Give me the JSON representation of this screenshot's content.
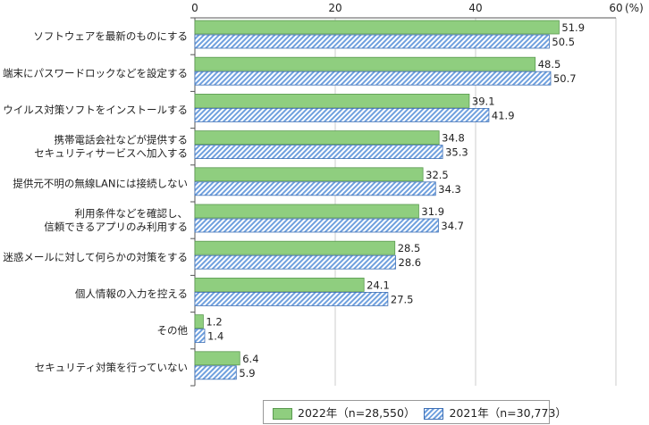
{
  "chart_data": {
    "type": "bar",
    "orientation": "horizontal",
    "xlabel": "(%)",
    "xlim": [
      0,
      60
    ],
    "xticks": [
      0,
      20,
      40,
      60
    ],
    "categories": [
      [
        "ソフトウェアを最新のものにする"
      ],
      [
        "端末にパスワードロックなどを設定する"
      ],
      [
        "ウイルス対策ソフトをインストールする"
      ],
      [
        "携帯電話会社などが提供する",
        "セキュリティサービスへ加入する"
      ],
      [
        "提供元不明の無線LANには接続しない"
      ],
      [
        "利用条件などを確認し、",
        "信頼できるアプリのみ利用する"
      ],
      [
        "迷惑メールに対して何らかの対策をする"
      ],
      [
        "個人情報の入力を控える"
      ],
      [
        "その他"
      ],
      [
        "セキュリティ対策を行っていない"
      ]
    ],
    "series": [
      {
        "name": "2022年（n=28,550）",
        "color": "#8fce7f",
        "values": [
          51.9,
          48.5,
          39.1,
          34.8,
          32.5,
          31.9,
          28.5,
          24.1,
          1.2,
          6.4
        ]
      },
      {
        "name": "2021年（n=30,773）",
        "color": "#6fa0de",
        "pattern": "hatched",
        "values": [
          50.5,
          50.7,
          41.9,
          35.3,
          34.3,
          34.7,
          28.6,
          27.5,
          1.4,
          5.9
        ]
      }
    ],
    "grid": true,
    "legend_position": "bottom"
  }
}
